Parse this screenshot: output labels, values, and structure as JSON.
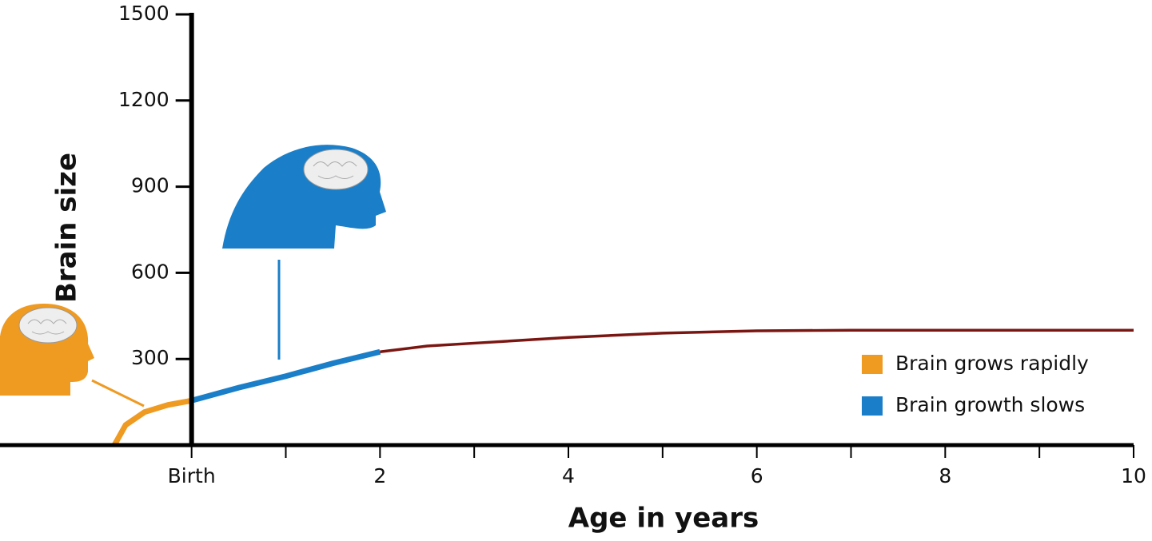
{
  "chart_data": {
    "type": "line",
    "ylabel": "Brain size",
    "xlabel": "Age in years",
    "xlim": [
      -2,
      10
    ],
    "ylim": [
      0,
      1500
    ],
    "xticks": [
      {
        "value": 0,
        "label": "Birth"
      },
      2,
      4,
      6,
      8,
      10
    ],
    "xminor_ticks": [
      1,
      3,
      5,
      7,
      9
    ],
    "yticks": [
      300,
      600,
      900,
      1200,
      1500
    ],
    "series": [
      {
        "name": "Brain grows rapidly",
        "color": "#ef9a21",
        "x": [
          -0.82,
          -0.7,
          -0.5,
          -0.25,
          0
        ],
        "values": [
          0,
          70,
          115,
          140,
          155
        ]
      },
      {
        "name": "Brain growth slows",
        "color": "#1a7fc8",
        "x": [
          0,
          0.5,
          1,
          1.5,
          2
        ],
        "values": [
          155,
          200,
          240,
          285,
          325
        ]
      },
      {
        "color": "#7a1612",
        "x": [
          2,
          2.5,
          3,
          4,
          5,
          6,
          7,
          8,
          10
        ],
        "values": [
          325,
          345,
          355,
          375,
          390,
          398,
          400,
          400,
          400
        ]
      }
    ]
  }
}
